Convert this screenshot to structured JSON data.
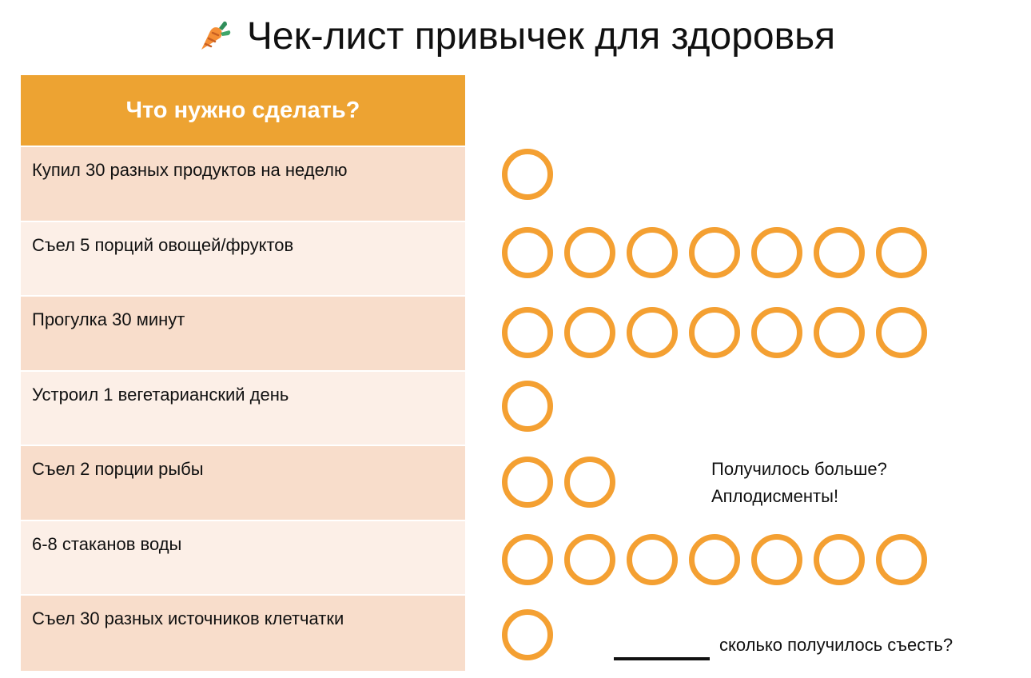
{
  "page": {
    "title": "Чек-лист привычек для здоровья",
    "title_icon": "carrot-icon",
    "accent_color": "#eda332"
  },
  "table": {
    "header": "Что нужно сделать?",
    "rows": [
      {
        "task": "Купил 30 разных продуктов на неделю",
        "circles": 1
      },
      {
        "task": "Съел 5 порций овощей/фруктов",
        "circles": 7
      },
      {
        "task": "Прогулка 30 минут",
        "circles": 7
      },
      {
        "task": "Устроил 1 вегетарианский день",
        "circles": 1
      },
      {
        "task": "Съел 2 порции рыбы",
        "circles": 2
      },
      {
        "task": "6-8 стаканов воды",
        "circles": 7
      },
      {
        "task": "Съел 30 разных источников клетчатки",
        "circles": 1
      }
    ]
  },
  "notes": {
    "bonus_line1": "Получилось больше?",
    "bonus_line2": "Аплодисменты!",
    "answer_prompt": "сколько получилось съесть?"
  },
  "colors": {
    "row_dark": "#f8ddcb",
    "row_light": "#fcefe7",
    "circle": "#f4a032"
  }
}
